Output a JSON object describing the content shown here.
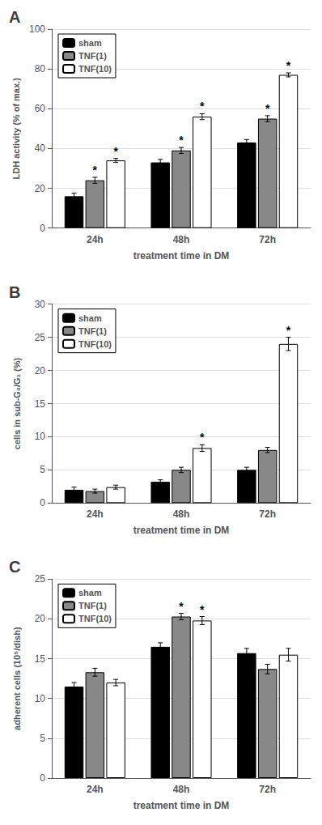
{
  "chart_data": [
    {
      "type": "bar",
      "title": "A",
      "xlabel": "treatment time in DM",
      "ylabel": "LDH activity (% of max.)",
      "categories": [
        "24h",
        "48h",
        "72h"
      ],
      "series": [
        {
          "name": "sham",
          "color": "#000000",
          "values": [
            16,
            33,
            43
          ],
          "errors": [
            1.5,
            1.5,
            1.5
          ]
        },
        {
          "name": "TNF(1)",
          "color": "#888888",
          "values": [
            24,
            39,
            55
          ],
          "errors": [
            1.5,
            1.5,
            1.5
          ],
          "annotations": [
            "*",
            "*",
            "*"
          ]
        },
        {
          "name": "TNF(10)",
          "color": "#ffffff",
          "values": [
            34,
            56,
            77
          ],
          "errors": [
            1.0,
            1.5,
            1.0
          ],
          "annotations": [
            "*",
            "*",
            "*"
          ]
        }
      ],
      "ylim": [
        0,
        100
      ],
      "yticks": [
        0,
        20,
        40,
        60,
        80,
        100
      ],
      "grid": true,
      "legend": "upper left"
    },
    {
      "type": "bar",
      "title": "B",
      "xlabel": "treatment time in DM",
      "ylabel": "cells in sub-G₀/G₁ (%)",
      "categories": [
        "24h",
        "48h",
        "72h"
      ],
      "series": [
        {
          "name": "sham",
          "color": "#000000",
          "values": [
            2.0,
            3.2,
            5.0
          ],
          "errors": [
            0.4,
            0.3,
            0.4
          ]
        },
        {
          "name": "TNF(1)",
          "color": "#888888",
          "values": [
            1.8,
            5.0,
            8.0
          ],
          "errors": [
            0.3,
            0.4,
            0.4
          ]
        },
        {
          "name": "TNF(10)",
          "color": "#ffffff",
          "values": [
            2.4,
            8.3,
            24.0
          ],
          "errors": [
            0.3,
            0.5,
            1.0
          ],
          "annotations": [
            null,
            "*",
            "*"
          ]
        }
      ],
      "ylim": [
        0,
        30
      ],
      "yticks": [
        0,
        5,
        10,
        15,
        20,
        25,
        30
      ],
      "grid": true,
      "legend": "upper left"
    },
    {
      "type": "bar",
      "title": "C",
      "xlabel": "treatment time in DM",
      "ylabel": "adherent cells (10⁵/dish)",
      "categories": [
        "24h",
        "48h",
        "72h"
      ],
      "series": [
        {
          "name": "sham",
          "color": "#000000",
          "values": [
            11.5,
            16.5,
            15.7
          ],
          "errors": [
            0.5,
            0.5,
            0.6
          ]
        },
        {
          "name": "TNF(1)",
          "color": "#888888",
          "values": [
            13.3,
            20.3,
            13.7
          ],
          "errors": [
            0.5,
            0.4,
            0.6
          ],
          "annotations": [
            null,
            "*",
            null
          ]
        },
        {
          "name": "TNF(10)",
          "color": "#ffffff",
          "values": [
            12.0,
            19.8,
            15.5
          ],
          "errors": [
            0.4,
            0.5,
            0.8
          ],
          "annotations": [
            null,
            "*",
            null
          ]
        }
      ],
      "ylim": [
        0,
        25
      ],
      "yticks": [
        0,
        5,
        10,
        15,
        20,
        25
      ],
      "grid": true,
      "legend": "upper left"
    }
  ]
}
